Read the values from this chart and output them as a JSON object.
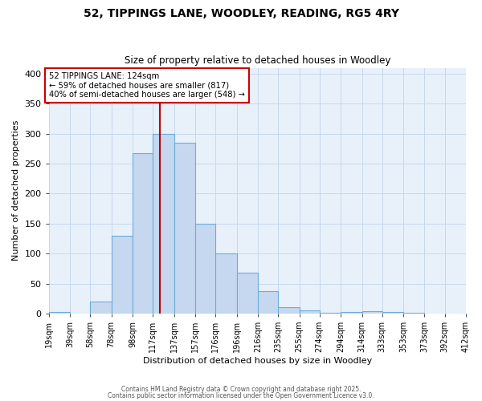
{
  "title": "52, TIPPINGS LANE, WOODLEY, READING, RG5 4RY",
  "subtitle": "Size of property relative to detached houses in Woodley",
  "xlabel": "Distribution of detached houses by size in Woodley",
  "ylabel": "Number of detached properties",
  "bin_labels": [
    "19sqm",
    "39sqm",
    "58sqm",
    "78sqm",
    "98sqm",
    "117sqm",
    "137sqm",
    "157sqm",
    "176sqm",
    "196sqm",
    "216sqm",
    "235sqm",
    "255sqm",
    "274sqm",
    "294sqm",
    "314sqm",
    "333sqm",
    "353sqm",
    "373sqm",
    "392sqm",
    "412sqm"
  ],
  "bin_edges": [
    19,
    39,
    58,
    78,
    98,
    117,
    137,
    157,
    176,
    196,
    216,
    235,
    255,
    274,
    294,
    314,
    333,
    353,
    373,
    392,
    412
  ],
  "bar_heights": [
    2,
    0,
    20,
    130,
    267,
    300,
    285,
    150,
    100,
    68,
    38,
    10,
    5,
    1,
    3,
    4,
    3,
    1,
    0,
    0,
    0
  ],
  "bar_color": "#C5D8F0",
  "bar_edge_color": "#6AAED6",
  "property_size": 124,
  "vline_color": "#BB0000",
  "annotation_text": "52 TIPPINGS LANE: 124sqm\n← 59% of detached houses are smaller (817)\n40% of semi-detached houses are larger (548) →",
  "annotation_box_color": "#CC0000",
  "ylim": [
    0,
    410
  ],
  "yticks": [
    0,
    50,
    100,
    150,
    200,
    250,
    300,
    350,
    400
  ],
  "grid_color": "#C8D8EC",
  "bg_color": "#E8F0FA",
  "footer1": "Contains HM Land Registry data © Crown copyright and database right 2025.",
  "footer2": "Contains public sector information licensed under the Open Government Licence v3.0."
}
